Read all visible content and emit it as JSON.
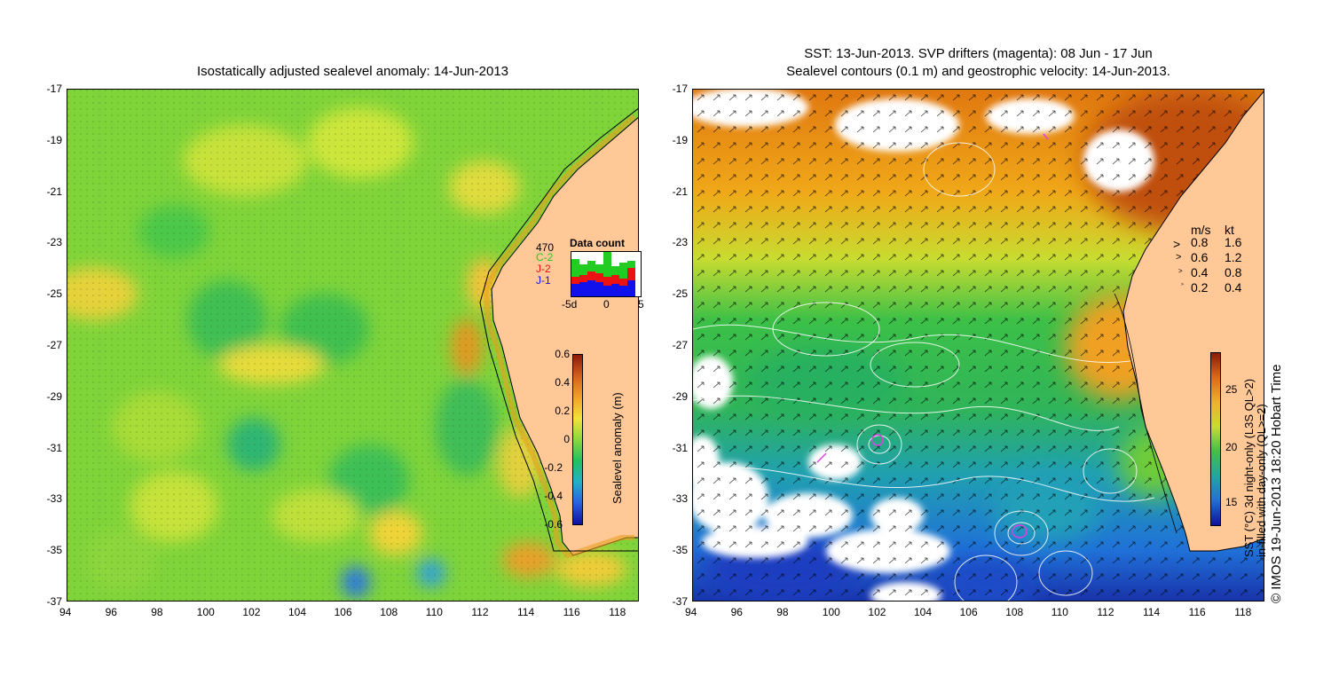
{
  "left_panel": {
    "title": "Isostatically adjusted sealevel anomaly: 14-Jun-2013",
    "y_ticks": [
      "-17",
      "-19",
      "-21",
      "-23",
      "-25",
      "-27",
      "-29",
      "-31",
      "-33",
      "-35",
      "-37"
    ],
    "x_ticks": [
      "94",
      "96",
      "98",
      "100",
      "102",
      "104",
      "106",
      "108",
      "110",
      "112",
      "114",
      "116",
      "118"
    ],
    "inset": {
      "title": "Data count",
      "total": "470",
      "legend": [
        {
          "label": "C-2",
          "color": "#22cc22"
        },
        {
          "label": "J-2",
          "color": "#ee1111"
        },
        {
          "label": "J-1",
          "color": "#1111ee"
        }
      ],
      "x_ticks": [
        "-5d",
        "0",
        "5"
      ]
    },
    "colorbar": {
      "label": "Sealevel anomaly (m)",
      "ticks": [
        "0.6",
        "0.4",
        "0.2",
        "0",
        "-0.2",
        "-0.4",
        "-0.6"
      ]
    }
  },
  "right_panel": {
    "title_line1": "SST: 13-Jun-2013. SVP drifters (magenta): 08 Jun - 17 Jun",
    "title_line2": "Sealevel contours (0.1 m) and geostrophic velocity: 14-Jun-2013.",
    "y_ticks": [
      "-17",
      "-19",
      "-21",
      "-23",
      "-25",
      "-27",
      "-29",
      "-31",
      "-33",
      "-35",
      "-37"
    ],
    "x_ticks": [
      "94",
      "96",
      "98",
      "100",
      "102",
      "104",
      "106",
      "108",
      "110",
      "112",
      "114",
      "116",
      "118"
    ],
    "speed_legend": {
      "header_ms": "m/s",
      "header_kt": "kt",
      "rows": [
        {
          "ms": "0.8",
          "kt": "1.6"
        },
        {
          "ms": "0.6",
          "kt": "1.2"
        },
        {
          "ms": "0.4",
          "kt": "0.8"
        },
        {
          "ms": "0.2",
          "kt": "0.4"
        }
      ]
    },
    "colorbar": {
      "label_line1": "SST (°C)  3d night-only (L3S QL>2)",
      "label_line2": "in-filled with day-only (QL>=2)",
      "ticks": [
        "25",
        "20",
        "15"
      ]
    },
    "credit": "© IMOS 19-Jun-2013 18:20 Hobart Time"
  }
}
